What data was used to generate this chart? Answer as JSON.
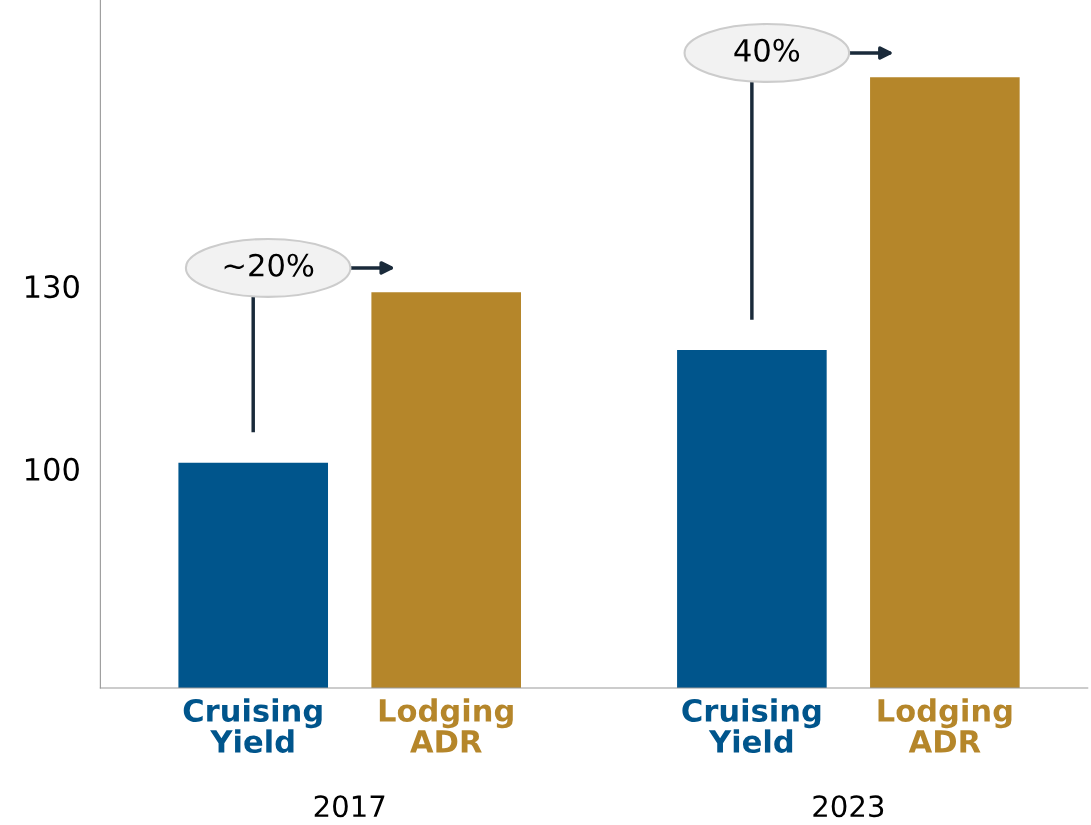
{
  "chart_data": {
    "type": "bar",
    "categories": [
      "2017",
      "2023"
    ],
    "series": [
      {
        "name": "Cruising Yield",
        "color": "#00558c",
        "values": [
          101,
          119.5
        ]
      },
      {
        "name": "Lodging ADR",
        "color": "#b5862a",
        "values": [
          129,
          164.3
        ]
      }
    ],
    "ylim": [
      64,
      177
    ],
    "yticks": [
      100,
      130
    ],
    "grid": false,
    "annotations": [
      "~20%",
      "40%"
    ]
  }
}
